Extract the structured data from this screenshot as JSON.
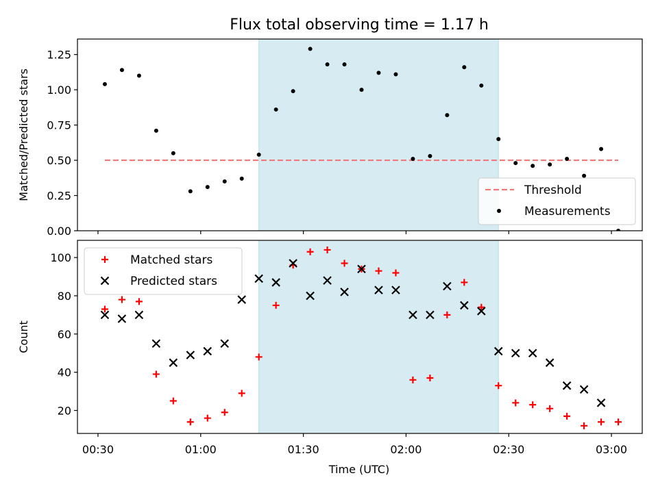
{
  "chart_data": [
    {
      "type": "scatter",
      "title": "Flux total observing time = 1.17 h",
      "xlabel": "",
      "ylabel": "Matched/Predicted stars",
      "xlim": [
        "00:24",
        "03:09"
      ],
      "ylim": [
        0.0,
        1.36
      ],
      "yticks": [
        "0.00",
        "0.25",
        "0.50",
        "0.75",
        "1.00",
        "1.25"
      ],
      "threshold": {
        "name": "Threshold",
        "value": 0.5,
        "x_range": [
          "00:32",
          "03:02"
        ],
        "color": "#f07878",
        "style": "dashed"
      },
      "shaded_span": {
        "x_range": [
          "01:17",
          "02:27"
        ],
        "color": "#add8e6"
      },
      "legend": {
        "position": "lower-right"
      },
      "series": [
        {
          "name": "Measurements",
          "color": "#000000",
          "marker": "dot",
          "x": [
            "00:32",
            "00:37",
            "00:42",
            "00:47",
            "00:52",
            "00:57",
            "01:02",
            "01:07",
            "01:12",
            "01:17",
            "01:22",
            "01:27",
            "01:32",
            "01:37",
            "01:42",
            "01:47",
            "01:52",
            "01:57",
            "02:02",
            "02:07",
            "02:12",
            "02:17",
            "02:22",
            "02:27",
            "02:32",
            "02:37",
            "02:42",
            "02:47",
            "02:52",
            "02:57",
            "03:02"
          ],
          "y": [
            1.04,
            1.14,
            1.1,
            0.71,
            0.55,
            0.28,
            0.31,
            0.35,
            0.37,
            0.54,
            0.86,
            0.99,
            1.29,
            1.18,
            1.18,
            1.0,
            1.12,
            1.11,
            0.51,
            0.53,
            0.82,
            1.16,
            1.03,
            0.65,
            0.48,
            0.46,
            0.47,
            0.51,
            0.39,
            0.58,
            0.0
          ]
        }
      ]
    },
    {
      "type": "scatter",
      "title": "",
      "xlabel": "Time (UTC)",
      "ylabel": "Count",
      "xlim": [
        "00:24",
        "03:09"
      ],
      "ylim": [
        8,
        109
      ],
      "yticks": [
        "20",
        "40",
        "60",
        "80",
        "100"
      ],
      "xticks": [
        "00:30",
        "01:00",
        "01:30",
        "02:00",
        "02:30",
        "03:00"
      ],
      "shaded_span": {
        "x_range": [
          "01:17",
          "02:27"
        ],
        "color": "#add8e6"
      },
      "legend": {
        "position": "upper-left"
      },
      "series": [
        {
          "name": "Matched stars",
          "color": "#ff0000",
          "marker": "plus",
          "x": [
            "00:32",
            "00:37",
            "00:42",
            "00:47",
            "00:52",
            "00:57",
            "01:02",
            "01:07",
            "01:12",
            "01:17",
            "01:22",
            "01:27",
            "01:32",
            "01:37",
            "01:42",
            "01:47",
            "01:52",
            "01:57",
            "02:02",
            "02:07",
            "02:12",
            "02:17",
            "02:22",
            "02:27",
            "02:32",
            "02:37",
            "02:42",
            "02:47",
            "02:52",
            "02:57",
            "03:02"
          ],
          "y": [
            73,
            78,
            77,
            39,
            25,
            14,
            16,
            19,
            29,
            48,
            75,
            96,
            103,
            104,
            97,
            94,
            93,
            92,
            36,
            37,
            70,
            87,
            74,
            33,
            24,
            23,
            21,
            17,
            12,
            14,
            14
          ]
        },
        {
          "name": "Predicted stars",
          "color": "#000000",
          "marker": "x",
          "x": [
            "00:32",
            "00:37",
            "00:42",
            "00:47",
            "00:52",
            "00:57",
            "01:02",
            "01:07",
            "01:12",
            "01:17",
            "01:22",
            "01:27",
            "01:32",
            "01:37",
            "01:42",
            "01:47",
            "01:52",
            "01:57",
            "02:02",
            "02:07",
            "02:12",
            "02:17",
            "02:22",
            "02:27",
            "02:32",
            "02:37",
            "02:42",
            "02:47",
            "02:52",
            "02:57"
          ],
          "y": [
            70,
            68,
            70,
            55,
            45,
            49,
            51,
            55,
            78,
            89,
            87,
            97,
            80,
            88,
            82,
            94,
            83,
            83,
            70,
            70,
            85,
            75,
            72,
            51,
            50,
            50,
            45,
            33,
            31,
            24
          ]
        }
      ]
    }
  ]
}
